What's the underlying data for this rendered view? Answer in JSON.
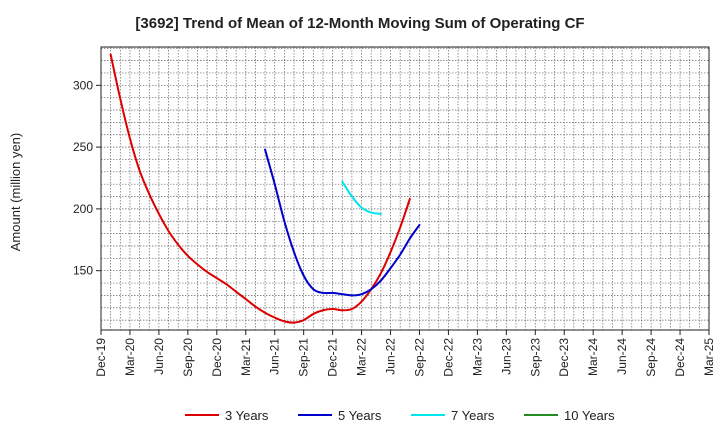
{
  "chart_data": {
    "type": "line",
    "title": "[3692]  Trend of Mean of 12-Month Moving Sum of Operating CF",
    "xlabel": "",
    "ylabel": "Amount (million yen)",
    "x_ticks": [
      "Dec-19",
      "Mar-20",
      "Jun-20",
      "Sep-20",
      "Dec-20",
      "Mar-21",
      "Jun-21",
      "Sep-21",
      "Dec-21",
      "Mar-22",
      "Jun-22",
      "Sep-22",
      "Dec-22",
      "Mar-23",
      "Jun-23",
      "Sep-23",
      "Dec-23",
      "Mar-24",
      "Jun-24",
      "Sep-24",
      "Dec-24",
      "Mar-25"
    ],
    "y_ticks": [
      150,
      200,
      250,
      300
    ],
    "ylim": [
      102,
      331
    ],
    "grid": true,
    "legend_position": "bottom",
    "series": [
      {
        "name": "3 Years",
        "color": "#dd0000",
        "points": [
          [
            1,
            325
          ],
          [
            2,
            289
          ],
          [
            3,
            257
          ],
          [
            4,
            231
          ],
          [
            5,
            212
          ],
          [
            6,
            196
          ],
          [
            7,
            182
          ],
          [
            8,
            171
          ],
          [
            9,
            162
          ],
          [
            10,
            155
          ],
          [
            11,
            149
          ],
          [
            12,
            144
          ],
          [
            13,
            139
          ],
          [
            14,
            133
          ],
          [
            15,
            127
          ],
          [
            16,
            121
          ],
          [
            17,
            116
          ],
          [
            18,
            112
          ],
          [
            19,
            109
          ],
          [
            20,
            108
          ],
          [
            21,
            110
          ],
          [
            22,
            115
          ],
          [
            23,
            118
          ],
          [
            24,
            119
          ],
          [
            25,
            118
          ],
          [
            26,
            119
          ],
          [
            27,
            125
          ],
          [
            28,
            135
          ],
          [
            29,
            148
          ],
          [
            30,
            165
          ],
          [
            31,
            185
          ],
          [
            32,
            208
          ]
        ]
      },
      {
        "name": "5 Years",
        "color": "#0000cc",
        "points": [
          [
            17,
            248
          ],
          [
            18,
            220
          ],
          [
            19,
            190
          ],
          [
            20,
            165
          ],
          [
            21,
            146
          ],
          [
            22,
            135
          ],
          [
            23,
            132
          ],
          [
            24,
            132
          ],
          [
            25,
            131
          ],
          [
            26,
            130
          ],
          [
            27,
            131
          ],
          [
            28,
            135
          ],
          [
            29,
            142
          ],
          [
            30,
            152
          ],
          [
            31,
            163
          ],
          [
            32,
            176
          ],
          [
            33,
            187
          ]
        ]
      },
      {
        "name": "7 Years",
        "color": "#00e5ee",
        "points": [
          [
            25,
            222
          ],
          [
            26,
            210
          ],
          [
            27,
            201
          ],
          [
            28,
            197
          ],
          [
            29,
            196
          ]
        ]
      },
      {
        "name": "10 Years",
        "color": "#228b22",
        "points": []
      }
    ]
  }
}
